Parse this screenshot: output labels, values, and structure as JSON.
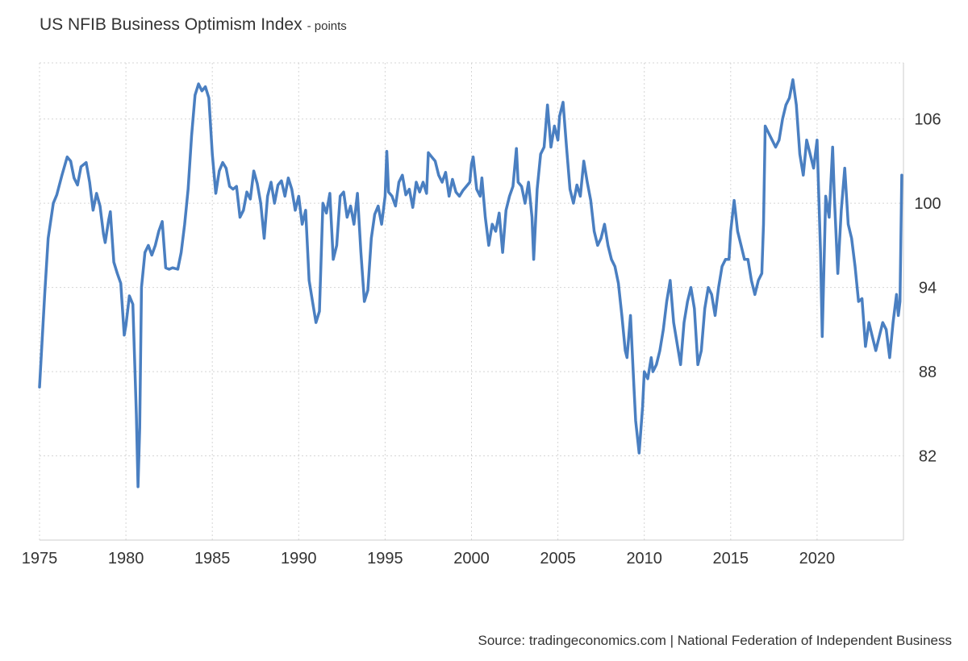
{
  "chart_data": {
    "type": "line",
    "title": "US NFIB Business Optimism Index",
    "unit": "- points",
    "source": "Source: tradingeconomics.com | National Federation of Independent Business",
    "xlim": [
      1975,
      2025
    ],
    "ylim": [
      76,
      110
    ],
    "xticks": [
      1975,
      1980,
      1985,
      1990,
      1995,
      2000,
      2005,
      2010,
      2015,
      2020
    ],
    "yticks": [
      82,
      88,
      94,
      100,
      106
    ],
    "grid": true,
    "colors": {
      "line": "#4a7fc1",
      "grid": "#d5d5d5",
      "axis": "#cccccc"
    },
    "series": [
      {
        "values": [
          [
            1975.0,
            86.9
          ],
          [
            1975.3,
            93.5
          ],
          [
            1975.5,
            97.5
          ],
          [
            1975.8,
            100.0
          ],
          [
            1976.0,
            100.6
          ],
          [
            1976.3,
            102.0
          ],
          [
            1976.6,
            103.3
          ],
          [
            1976.8,
            103.0
          ],
          [
            1977.0,
            101.8
          ],
          [
            1977.2,
            101.3
          ],
          [
            1977.4,
            102.6
          ],
          [
            1977.7,
            102.9
          ],
          [
            1977.9,
            101.5
          ],
          [
            1978.1,
            99.5
          ],
          [
            1978.3,
            100.7
          ],
          [
            1978.5,
            99.8
          ],
          [
            1978.7,
            97.8
          ],
          [
            1978.8,
            97.2
          ],
          [
            1979.0,
            98.8
          ],
          [
            1979.1,
            99.4
          ],
          [
            1979.3,
            95.8
          ],
          [
            1979.5,
            95.0
          ],
          [
            1979.7,
            94.3
          ],
          [
            1979.9,
            90.6
          ],
          [
            1980.0,
            91.3
          ],
          [
            1980.2,
            93.4
          ],
          [
            1980.4,
            92.8
          ],
          [
            1980.5,
            89.0
          ],
          [
            1980.6,
            85.0
          ],
          [
            1980.7,
            79.8
          ],
          [
            1980.8,
            84.0
          ],
          [
            1980.9,
            94.0
          ],
          [
            1981.1,
            96.5
          ],
          [
            1981.3,
            97.0
          ],
          [
            1981.5,
            96.3
          ],
          [
            1981.7,
            97.0
          ],
          [
            1981.9,
            98.0
          ],
          [
            1982.1,
            98.7
          ],
          [
            1982.3,
            95.4
          ],
          [
            1982.5,
            95.3
          ],
          [
            1982.7,
            95.4
          ],
          [
            1983.0,
            95.3
          ],
          [
            1983.2,
            96.5
          ],
          [
            1983.4,
            98.5
          ],
          [
            1983.6,
            101.0
          ],
          [
            1983.8,
            104.8
          ],
          [
            1984.0,
            107.7
          ],
          [
            1984.2,
            108.5
          ],
          [
            1984.4,
            108.0
          ],
          [
            1984.6,
            108.3
          ],
          [
            1984.8,
            107.5
          ],
          [
            1985.0,
            103.5
          ],
          [
            1985.2,
            100.7
          ],
          [
            1985.4,
            102.3
          ],
          [
            1985.6,
            102.9
          ],
          [
            1985.8,
            102.5
          ],
          [
            1986.0,
            101.2
          ],
          [
            1986.2,
            101.0
          ],
          [
            1986.4,
            101.2
          ],
          [
            1986.6,
            99.0
          ],
          [
            1986.8,
            99.5
          ],
          [
            1987.0,
            100.8
          ],
          [
            1987.2,
            100.3
          ],
          [
            1987.4,
            102.3
          ],
          [
            1987.6,
            101.4
          ],
          [
            1987.8,
            100.0
          ],
          [
            1988.0,
            97.5
          ],
          [
            1988.2,
            100.5
          ],
          [
            1988.4,
            101.5
          ],
          [
            1988.6,
            100.0
          ],
          [
            1988.8,
            101.3
          ],
          [
            1989.0,
            101.6
          ],
          [
            1989.2,
            100.5
          ],
          [
            1989.4,
            101.8
          ],
          [
            1989.6,
            101.0
          ],
          [
            1989.8,
            99.5
          ],
          [
            1990.0,
            100.5
          ],
          [
            1990.2,
            98.5
          ],
          [
            1990.4,
            99.5
          ],
          [
            1990.6,
            94.5
          ],
          [
            1990.8,
            93.0
          ],
          [
            1991.0,
            91.5
          ],
          [
            1991.2,
            92.3
          ],
          [
            1991.4,
            100.0
          ],
          [
            1991.6,
            99.3
          ],
          [
            1991.8,
            100.7
          ],
          [
            1992.0,
            96.0
          ],
          [
            1992.2,
            97.0
          ],
          [
            1992.4,
            100.5
          ],
          [
            1992.6,
            100.8
          ],
          [
            1992.8,
            99.0
          ],
          [
            1993.0,
            99.8
          ],
          [
            1993.2,
            98.5
          ],
          [
            1993.4,
            100.7
          ],
          [
            1993.6,
            96.5
          ],
          [
            1993.8,
            93.0
          ],
          [
            1994.0,
            93.8
          ],
          [
            1994.2,
            97.5
          ],
          [
            1994.4,
            99.2
          ],
          [
            1994.6,
            99.8
          ],
          [
            1994.8,
            98.5
          ],
          [
            1995.0,
            100.5
          ],
          [
            1995.1,
            103.7
          ],
          [
            1995.2,
            100.8
          ],
          [
            1995.4,
            100.5
          ],
          [
            1995.6,
            99.8
          ],
          [
            1995.8,
            101.5
          ],
          [
            1996.0,
            102.0
          ],
          [
            1996.2,
            100.6
          ],
          [
            1996.4,
            101.0
          ],
          [
            1996.6,
            99.7
          ],
          [
            1996.8,
            101.5
          ],
          [
            1997.0,
            100.8
          ],
          [
            1997.2,
            101.5
          ],
          [
            1997.4,
            100.7
          ],
          [
            1997.5,
            103.6
          ],
          [
            1997.7,
            103.3
          ],
          [
            1997.9,
            103.0
          ],
          [
            1998.1,
            102.0
          ],
          [
            1998.3,
            101.5
          ],
          [
            1998.5,
            102.2
          ],
          [
            1998.7,
            100.5
          ],
          [
            1998.9,
            101.7
          ],
          [
            1999.1,
            100.8
          ],
          [
            1999.3,
            100.5
          ],
          [
            1999.5,
            100.9
          ],
          [
            1999.7,
            101.2
          ],
          [
            1999.9,
            101.5
          ],
          [
            2000.0,
            102.8
          ],
          [
            2000.1,
            103.3
          ],
          [
            2000.3,
            101.0
          ],
          [
            2000.5,
            100.5
          ],
          [
            2000.6,
            101.8
          ],
          [
            2000.8,
            99.0
          ],
          [
            2001.0,
            97.0
          ],
          [
            2001.2,
            98.5
          ],
          [
            2001.4,
            98.0
          ],
          [
            2001.6,
            99.3
          ],
          [
            2001.8,
            96.5
          ],
          [
            2002.0,
            99.5
          ],
          [
            2002.2,
            100.5
          ],
          [
            2002.4,
            101.2
          ],
          [
            2002.6,
            103.9
          ],
          [
            2002.7,
            101.5
          ],
          [
            2002.9,
            101.2
          ],
          [
            2003.1,
            100.0
          ],
          [
            2003.3,
            101.5
          ],
          [
            2003.5,
            99.0
          ],
          [
            2003.6,
            96.0
          ],
          [
            2003.8,
            101.0
          ],
          [
            2004.0,
            103.5
          ],
          [
            2004.2,
            104.0
          ],
          [
            2004.4,
            107.0
          ],
          [
            2004.6,
            104.0
          ],
          [
            2004.8,
            105.5
          ],
          [
            2005.0,
            104.5
          ],
          [
            2005.1,
            106.2
          ],
          [
            2005.3,
            107.2
          ],
          [
            2005.5,
            104.0
          ],
          [
            2005.7,
            101.0
          ],
          [
            2005.9,
            100.0
          ],
          [
            2006.1,
            101.3
          ],
          [
            2006.3,
            100.5
          ],
          [
            2006.5,
            103.0
          ],
          [
            2006.7,
            101.5
          ],
          [
            2006.9,
            100.2
          ],
          [
            2007.1,
            98.0
          ],
          [
            2007.3,
            97.0
          ],
          [
            2007.5,
            97.5
          ],
          [
            2007.7,
            98.5
          ],
          [
            2007.9,
            97.0
          ],
          [
            2008.1,
            96.0
          ],
          [
            2008.3,
            95.5
          ],
          [
            2008.5,
            94.3
          ],
          [
            2008.7,
            92.0
          ],
          [
            2008.9,
            89.5
          ],
          [
            2009.0,
            89.0
          ],
          [
            2009.2,
            92.0
          ],
          [
            2009.4,
            87.0
          ],
          [
            2009.5,
            84.5
          ],
          [
            2009.7,
            82.2
          ],
          [
            2009.9,
            85.5
          ],
          [
            2010.0,
            88.0
          ],
          [
            2010.2,
            87.5
          ],
          [
            2010.4,
            89.0
          ],
          [
            2010.5,
            88.0
          ],
          [
            2010.7,
            88.5
          ],
          [
            2010.9,
            89.5
          ],
          [
            2011.1,
            91.0
          ],
          [
            2011.3,
            93.0
          ],
          [
            2011.5,
            94.5
          ],
          [
            2011.7,
            91.5
          ],
          [
            2011.9,
            90.0
          ],
          [
            2012.1,
            88.5
          ],
          [
            2012.3,
            91.5
          ],
          [
            2012.5,
            93.0
          ],
          [
            2012.7,
            94.0
          ],
          [
            2012.9,
            92.5
          ],
          [
            2013.1,
            88.5
          ],
          [
            2013.3,
            89.5
          ],
          [
            2013.5,
            92.5
          ],
          [
            2013.7,
            94.0
          ],
          [
            2013.9,
            93.5
          ],
          [
            2014.1,
            92.0
          ],
          [
            2014.3,
            94.0
          ],
          [
            2014.5,
            95.5
          ],
          [
            2014.7,
            96.0
          ],
          [
            2014.9,
            96.0
          ],
          [
            2015.0,
            98.0
          ],
          [
            2015.2,
            100.2
          ],
          [
            2015.4,
            98.0
          ],
          [
            2015.6,
            97.0
          ],
          [
            2015.8,
            96.0
          ],
          [
            2016.0,
            96.0
          ],
          [
            2016.2,
            94.5
          ],
          [
            2016.4,
            93.5
          ],
          [
            2016.6,
            94.5
          ],
          [
            2016.8,
            95.0
          ],
          [
            2016.9,
            98.5
          ],
          [
            2017.0,
            105.5
          ],
          [
            2017.2,
            105.0
          ],
          [
            2017.4,
            104.5
          ],
          [
            2017.6,
            104.0
          ],
          [
            2017.8,
            104.5
          ],
          [
            2018.0,
            106.0
          ],
          [
            2018.2,
            107.0
          ],
          [
            2018.4,
            107.5
          ],
          [
            2018.6,
            108.8
          ],
          [
            2018.8,
            107.0
          ],
          [
            2019.0,
            103.5
          ],
          [
            2019.2,
            102.0
          ],
          [
            2019.4,
            104.5
          ],
          [
            2019.6,
            103.5
          ],
          [
            2019.8,
            102.5
          ],
          [
            2020.0,
            104.5
          ],
          [
            2020.2,
            96.5
          ],
          [
            2020.3,
            90.5
          ],
          [
            2020.5,
            100.5
          ],
          [
            2020.7,
            99.0
          ],
          [
            2020.9,
            104.0
          ],
          [
            2021.0,
            100.5
          ],
          [
            2021.2,
            95.0
          ],
          [
            2021.4,
            99.5
          ],
          [
            2021.6,
            102.5
          ],
          [
            2021.8,
            98.5
          ],
          [
            2022.0,
            97.5
          ],
          [
            2022.2,
            95.5
          ],
          [
            2022.4,
            93.0
          ],
          [
            2022.6,
            93.2
          ],
          [
            2022.8,
            89.8
          ],
          [
            2023.0,
            91.5
          ],
          [
            2023.2,
            90.5
          ],
          [
            2023.4,
            89.5
          ],
          [
            2023.6,
            90.5
          ],
          [
            2023.8,
            91.5
          ],
          [
            2024.0,
            91.0
          ],
          [
            2024.2,
            89.0
          ],
          [
            2024.4,
            91.5
          ],
          [
            2024.6,
            93.5
          ],
          [
            2024.7,
            92.0
          ],
          [
            2024.8,
            93.0
          ],
          [
            2024.9,
            102.0
          ]
        ]
      }
    ]
  }
}
